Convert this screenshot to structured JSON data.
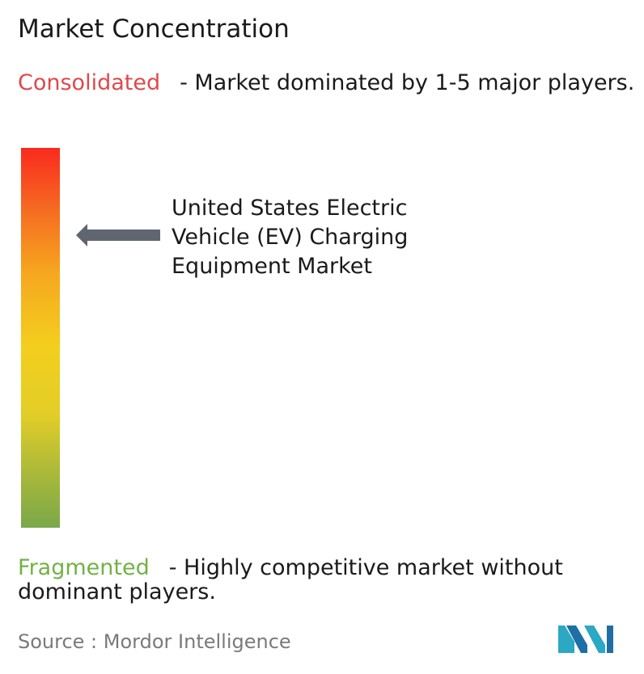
{
  "title": "Market Concentration",
  "consolidated": {
    "label": "Consolidated",
    "description": "- Market dominated by 1-5 major players.",
    "color": "#e0484b"
  },
  "fragmented": {
    "label": "Fragmented",
    "description": "- Highly competitive market without dominant players.",
    "color": "#72b245"
  },
  "market_label": "United States Electric Vehicle (EV) Charging Equipment Market",
  "source": "Source :  Mordor Intelligence",
  "chart_data": {
    "type": "gradient-scale",
    "scale_top": "Consolidated",
    "scale_bottom": "Fragmented",
    "indicator_label": "United States Electric Vehicle (EV) Charging Equipment Market",
    "indicator_position_fraction_from_top": 0.23,
    "gradient_colors": [
      "#f92a1d",
      "#f66a22",
      "#f6a71f",
      "#f3ce1e",
      "#e3ce27",
      "#a9b83a",
      "#7aa84a"
    ]
  }
}
